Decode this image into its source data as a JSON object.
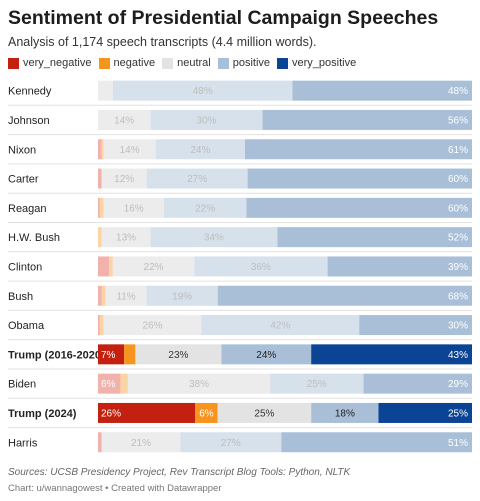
{
  "chart_data": {
    "type": "bar",
    "stacked": true,
    "orientation": "horizontal",
    "title": "Sentiment of Presidential Campaign Speeches",
    "subtitle": "Analysis of 1,174 speech transcripts (4.4 million words).",
    "legend_position": "top-left",
    "xlim": [
      0,
      100
    ],
    "categories": [
      "Kennedy",
      "Johnson",
      "Nixon",
      "Carter",
      "Reagan",
      "H.W. Bush",
      "Clinton",
      "Bush",
      "Obama",
      "Trump (2016-2020)",
      "Biden",
      "Trump (2024)",
      "Harris"
    ],
    "highlighted": [
      "Trump (2016-2020)",
      "Trump (2024)"
    ],
    "series": [
      {
        "name": "very_negative",
        "values": [
          0,
          0,
          1,
          1,
          0.5,
          0,
          3,
          1,
          0.5,
          7,
          6,
          26,
          1
        ]
      },
      {
        "name": "negative",
        "values": [
          0,
          0,
          0.5,
          0,
          1,
          1,
          1,
          1,
          1,
          3,
          2,
          6,
          0
        ]
      },
      {
        "name": "neutral",
        "values": [
          4,
          14,
          14,
          12,
          16,
          13,
          22,
          11,
          26,
          23,
          38,
          25,
          21
        ]
      },
      {
        "name": "positive",
        "values": [
          48,
          30,
          24,
          27,
          22,
          34,
          36,
          19,
          42,
          24,
          25,
          18,
          27
        ]
      },
      {
        "name": "very_positive",
        "values": [
          48,
          56,
          61,
          60,
          60,
          52,
          39,
          68,
          30,
          43,
          29,
          25,
          51
        ]
      }
    ],
    "labels": [
      [
        "",
        "",
        "",
        "48%",
        "48%"
      ],
      [
        "",
        "",
        "14%",
        "30%",
        "56%"
      ],
      [
        "",
        "",
        "14%",
        "24%",
        "61%"
      ],
      [
        "",
        "",
        "12%",
        "27%",
        "60%"
      ],
      [
        "",
        "",
        "16%",
        "22%",
        "60%"
      ],
      [
        "",
        "",
        "13%",
        "34%",
        "52%"
      ],
      [
        "",
        "",
        "22%",
        "36%",
        "39%"
      ],
      [
        "",
        "",
        "11%",
        "19%",
        "68%"
      ],
      [
        "",
        "",
        "26%",
        "42%",
        "30%"
      ],
      [
        "7%",
        "",
        "23%",
        "24%",
        "43%"
      ],
      [
        "6%",
        "",
        "38%",
        "25%",
        "29%"
      ],
      [
        "26%",
        "6%",
        "25%",
        "18%",
        "25%"
      ],
      [
        "",
        "",
        "21%",
        "27%",
        "51%"
      ]
    ]
  },
  "colors": {
    "very_negative": "#c4200f",
    "negative": "#f7941d",
    "neutral": "#e3e3e3",
    "positive": "#a9bfd8",
    "very_positive": "#0b4395"
  },
  "footer": {
    "source": "Sources: UCSB Presidency Project, Rev Transcript Blog Tools: Python, NLTK",
    "credit": "Chart: u/wannagowest • Created with Datawrapper"
  }
}
